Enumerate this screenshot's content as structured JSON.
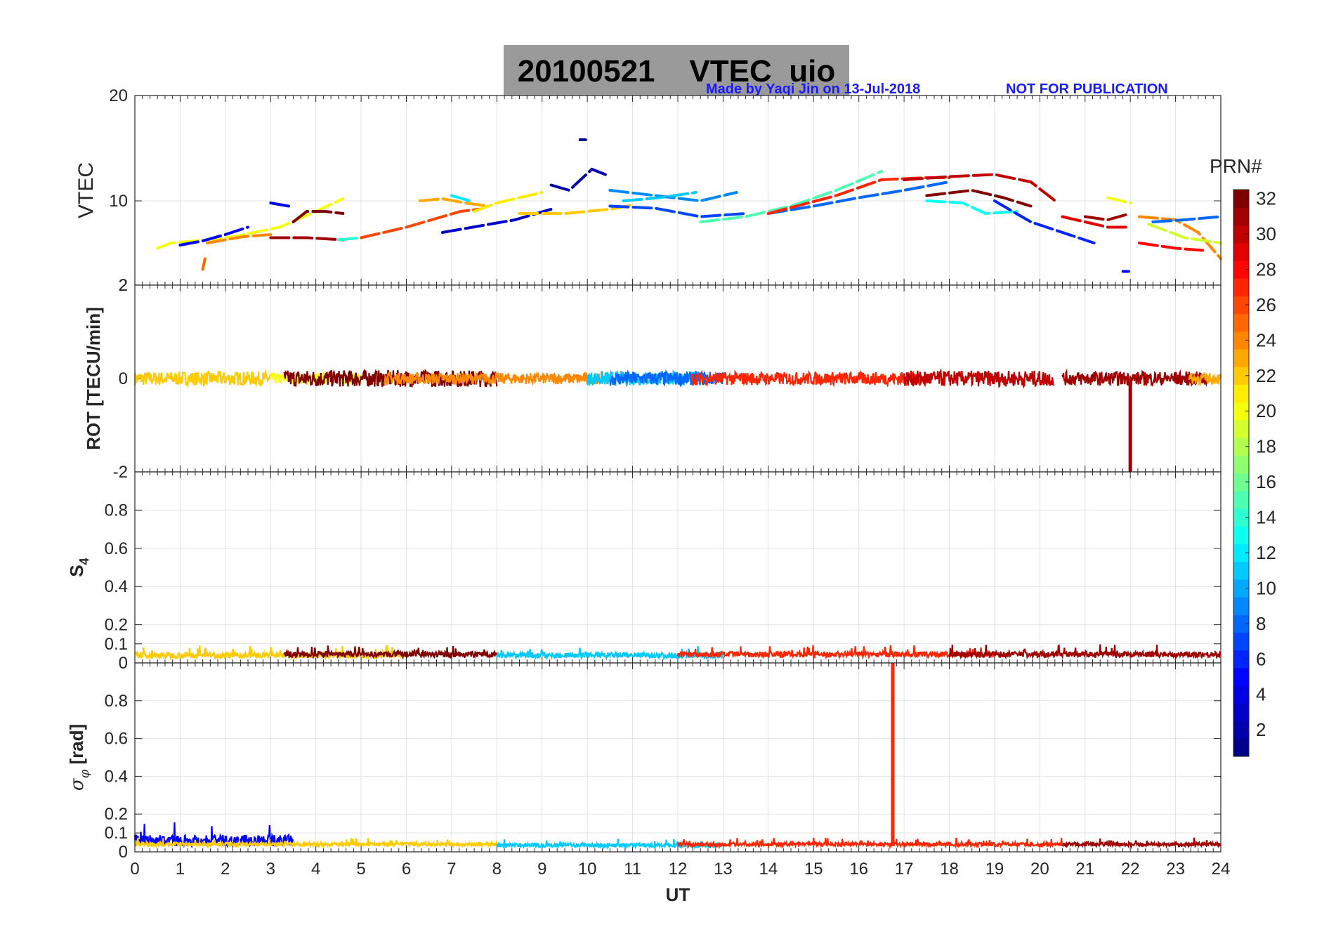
{
  "header": {
    "title": "20100521    VTEC  uio",
    "credit": "Made by Yaqi Jin on 13-Jul-2018",
    "notice": "NOT FOR PUBLICATION"
  },
  "colorbar": {
    "label": "PRN#",
    "ticks": [
      "2",
      "4",
      "6",
      "8",
      "10",
      "12",
      "14",
      "16",
      "18",
      "20",
      "22",
      "24",
      "26",
      "28",
      "30",
      "32"
    ],
    "range": [
      1,
      32
    ],
    "colormap": [
      "#00008f",
      "#0000ff",
      "#0080ff",
      "#00ffff",
      "#80ff80",
      "#ffff00",
      "#ff8000",
      "#ff0000",
      "#800000"
    ]
  },
  "chart_data": [
    {
      "type": "scatter",
      "name": "vtec",
      "title": "20100521 VTEC uio",
      "ylabel": "VTEC",
      "xlabel": "",
      "xlim": [
        0,
        24
      ],
      "ylim": [
        2,
        20
      ],
      "yticks": [
        "20",
        "10",
        "2"
      ],
      "grid": true,
      "series": [
        {
          "name": "PRN 20",
          "prn": 20,
          "x": [
            0.5,
            0.8,
            1.6,
            2.2,
            3.2,
            4.0,
            4.6
          ],
          "y": [
            5.5,
            6.0,
            6.3,
            6.6,
            7.5,
            9.0,
            10.2
          ]
        },
        {
          "name": "PRN 5",
          "prn": 5,
          "x": [
            1.0,
            1.5,
            2.0,
            2.5
          ],
          "y": [
            5.8,
            6.2,
            6.8,
            7.5
          ]
        },
        {
          "name": "PRN 24",
          "prn": 24,
          "x": [
            1.6,
            2.4,
            3.0
          ],
          "y": [
            6.0,
            6.6,
            6.8
          ]
        },
        {
          "name": "PRN 25",
          "prn": 25,
          "x": [
            1.5,
            1.55
          ],
          "y": [
            3.5,
            4.5
          ]
        },
        {
          "name": "PRN 4",
          "prn": 4,
          "x": [
            3.0,
            3.4
          ],
          "y": [
            9.8,
            9.5
          ]
        },
        {
          "name": "PRN 31",
          "prn": 31,
          "x": [
            3.0,
            3.8,
            4.6
          ],
          "y": [
            6.5,
            6.5,
            6.3
          ]
        },
        {
          "name": "PRN 32",
          "prn": 32,
          "x": [
            3.5,
            3.8,
            4.2,
            4.6
          ],
          "y": [
            8.0,
            9.0,
            9.0,
            8.8
          ]
        },
        {
          "name": "PRN 14",
          "prn": 14,
          "x": [
            4.5,
            5.0
          ],
          "y": [
            6.3,
            6.5
          ]
        },
        {
          "name": "PRN 26",
          "prn": 26,
          "x": [
            5.0,
            6.0,
            6.8,
            7.2,
            7.6
          ],
          "y": [
            6.5,
            7.5,
            8.5,
            9.0,
            9.2
          ]
        },
        {
          "name": "PRN 23",
          "prn": 23,
          "x": [
            6.3,
            6.8,
            7.3,
            7.8
          ],
          "y": [
            10.0,
            10.2,
            9.8,
            9.5
          ]
        },
        {
          "name": "PRN 21",
          "prn": 21,
          "x": [
            7.5,
            8.0,
            8.5,
            9.0
          ],
          "y": [
            9.0,
            9.8,
            10.3,
            10.8
          ]
        },
        {
          "name": "PRN 3",
          "prn": 3,
          "x": [
            6.8,
            7.6,
            8.4,
            9.2
          ],
          "y": [
            7.0,
            7.6,
            8.2,
            9.2
          ]
        },
        {
          "name": "PRN 12",
          "prn": 12,
          "x": [
            7.0,
            7.4
          ],
          "y": [
            10.5,
            10.0
          ]
        },
        {
          "name": "PRN 2",
          "prn": 2,
          "x": [
            9.2,
            9.6,
            10.1,
            10.4
          ],
          "y": [
            11.5,
            11.0,
            13.0,
            12.5
          ]
        },
        {
          "name": "PRN 1",
          "prn": 1,
          "x": [
            9.9
          ],
          "y": [
            15.8
          ]
        },
        {
          "name": "PRN 22",
          "prn": 22,
          "x": [
            8.5,
            9.5,
            10.5,
            11.0
          ],
          "y": [
            8.8,
            8.8,
            9.2,
            9.6
          ]
        },
        {
          "name": "PRN 9",
          "prn": 9,
          "x": [
            10.5,
            11.5,
            12.5,
            13.3
          ],
          "y": [
            11.0,
            10.5,
            10.0,
            10.8
          ]
        },
        {
          "name": "PRN 11",
          "prn": 11,
          "x": [
            10.8,
            11.6,
            12.4
          ],
          "y": [
            10.0,
            10.3,
            10.8
          ]
        },
        {
          "name": "PRN 7",
          "prn": 7,
          "x": [
            10.5,
            11.5,
            12.5,
            13.5
          ],
          "y": [
            9.5,
            9.3,
            8.5,
            8.8
          ]
        },
        {
          "name": "PRN 15",
          "prn": 15,
          "x": [
            12.5,
            13.5,
            14.5,
            15.5,
            16.5
          ],
          "y": [
            8.0,
            8.5,
            9.5,
            11.0,
            12.8
          ]
        },
        {
          "name": "PRN 8",
          "prn": 8,
          "x": [
            14.0,
            15.0,
            16.0,
            17.0,
            18.0
          ],
          "y": [
            8.8,
            9.5,
            10.3,
            11.0,
            11.8
          ]
        },
        {
          "name": "PRN 27",
          "prn": 27,
          "x": [
            14.0,
            15.5,
            16.5,
            17.5,
            18.0
          ],
          "y": [
            8.8,
            10.5,
            12.0,
            12.2,
            12.2
          ]
        },
        {
          "name": "PRN 30",
          "prn": 30,
          "x": [
            17.0,
            18.0,
            19.0,
            19.8,
            20.4
          ],
          "y": [
            12.0,
            12.3,
            12.5,
            11.8,
            9.8
          ]
        },
        {
          "name": "PRN 13",
          "prn": 13,
          "x": [
            17.5,
            18.3,
            18.8,
            19.5
          ],
          "y": [
            10.0,
            9.8,
            8.8,
            9.0
          ]
        },
        {
          "name": "PRN 32b",
          "prn": 32,
          "x": [
            17.5,
            18.5,
            19.2,
            19.8
          ],
          "y": [
            10.5,
            11.0,
            10.3,
            9.5
          ]
        },
        {
          "name": "PRN 6",
          "prn": 6,
          "x": [
            19.0,
            19.8,
            20.5,
            21.2
          ],
          "y": [
            10.0,
            8.0,
            7.0,
            6.0
          ]
        },
        {
          "name": "PRN 29",
          "prn": 29,
          "x": [
            20.5,
            21.0,
            21.5,
            22.0
          ],
          "y": [
            8.5,
            8.0,
            7.5,
            7.5
          ]
        },
        {
          "name": "PRN 31b",
          "prn": 31,
          "x": [
            21.0,
            21.5,
            22.0
          ],
          "y": [
            8.5,
            8.2,
            8.8
          ]
        },
        {
          "name": "PRN 20b",
          "prn": 20,
          "x": [
            21.5,
            22.0
          ],
          "y": [
            10.3,
            9.8
          ]
        },
        {
          "name": "PRN 24b",
          "prn": 24,
          "x": [
            22.2,
            23.0,
            23.5,
            24.0
          ],
          "y": [
            8.5,
            8.2,
            7.0,
            4.5
          ]
        },
        {
          "name": "PRN 8b",
          "prn": 8,
          "x": [
            22.5,
            23.2,
            24.0
          ],
          "y": [
            8.0,
            8.2,
            8.5
          ]
        },
        {
          "name": "PRN 28",
          "prn": 28,
          "x": [
            22.2,
            23.0,
            23.6
          ],
          "y": [
            6.0,
            5.5,
            5.3
          ]
        },
        {
          "name": "PRN 19",
          "prn": 19,
          "x": [
            22.4,
            23.2,
            24.0
          ],
          "y": [
            7.8,
            6.5,
            6.0
          ]
        },
        {
          "name": "PRN 5b",
          "prn": 5,
          "x": [
            21.9
          ],
          "y": [
            3.3
          ]
        }
      ]
    },
    {
      "type": "line",
      "name": "rot",
      "ylabel": "ROT [TECU/min]",
      "xlim": [
        0,
        24
      ],
      "ylim": [
        -2,
        2
      ],
      "yticks": [
        "2",
        "0",
        "-2"
      ],
      "grid": true,
      "series": [
        {
          "name": "PRN 22",
          "prn": 22,
          "x": [
            0,
            3
          ],
          "amplitude": 0.15,
          "mean": 0
        },
        {
          "name": "PRN 20",
          "prn": 20,
          "x": [
            3,
            5
          ],
          "amplitude": 0.12,
          "mean": 0
        },
        {
          "name": "PRN 32",
          "prn": 32,
          "x": [
            3.3,
            8
          ],
          "amplitude": 0.18,
          "mean": 0
        },
        {
          "name": "PRN 24",
          "prn": 24,
          "x": [
            5.5,
            10.5
          ],
          "amplitude": 0.12,
          "mean": 0
        },
        {
          "name": "PRN 11",
          "prn": 11,
          "x": [
            10,
            12.5
          ],
          "amplitude": 0.15,
          "mean": 0
        },
        {
          "name": "PRN 8",
          "prn": 8,
          "x": [
            10.5,
            13
          ],
          "amplitude": 0.15,
          "mean": 0
        },
        {
          "name": "PRN 27",
          "prn": 27,
          "x": [
            12.3,
            17.5
          ],
          "amplitude": 0.14,
          "mean": 0
        },
        {
          "name": "PRN 30",
          "prn": 30,
          "x": [
            17,
            20.3
          ],
          "amplitude": 0.17,
          "mean": 0
        },
        {
          "name": "PRN 31",
          "prn": 31,
          "x": [
            20.5,
            23.7
          ],
          "amplitude": 0.15,
          "mean": 0
        },
        {
          "name": "PRN 23",
          "prn": 23,
          "x": [
            23.3,
            24
          ],
          "amplitude": 0.12,
          "mean": 0
        },
        {
          "name": "PRN 31 spike",
          "prn": 31,
          "x": [
            22.0
          ],
          "y": [
            -2.0
          ]
        }
      ]
    },
    {
      "type": "line",
      "name": "s4",
      "ylabel": "S4",
      "xlim": [
        0,
        24
      ],
      "ylim": [
        0,
        1
      ],
      "yticks": [
        "0.8",
        "0.6",
        "0.4",
        "0.2",
        "0.1",
        "0"
      ],
      "grid": true,
      "series": [
        {
          "name": "PRN 22",
          "prn": 22,
          "x": [
            0,
            6
          ],
          "mean": 0.04,
          "amplitude": 0.015
        },
        {
          "name": "PRN 32",
          "prn": 32,
          "x": [
            3.3,
            8
          ],
          "mean": 0.045,
          "amplitude": 0.015
        },
        {
          "name": "PRN 11",
          "prn": 11,
          "x": [
            8,
            13
          ],
          "mean": 0.04,
          "amplitude": 0.015
        },
        {
          "name": "PRN 27",
          "prn": 27,
          "x": [
            12,
            19
          ],
          "mean": 0.045,
          "amplitude": 0.015
        },
        {
          "name": "PRN 31",
          "prn": 31,
          "x": [
            18,
            24
          ],
          "mean": 0.045,
          "amplitude": 0.015
        }
      ]
    },
    {
      "type": "line",
      "name": "sigma_phi",
      "ylabel": "σ_φ [rad]",
      "xlabel": "UT",
      "xlim": [
        0,
        24
      ],
      "ylim": [
        0,
        1
      ],
      "yticks": [
        "0.8",
        "0.6",
        "0.4",
        "0.2",
        "0.1",
        "0"
      ],
      "xticks": [
        "0",
        "1",
        "2",
        "3",
        "4",
        "5",
        "6",
        "7",
        "8",
        "9",
        "10",
        "11",
        "12",
        "13",
        "14",
        "15",
        "16",
        "17",
        "18",
        "19",
        "20",
        "21",
        "22",
        "23",
        "24"
      ],
      "grid": true,
      "series": [
        {
          "name": "PRN 5",
          "prn": 5,
          "x": [
            0,
            3.5
          ],
          "mean": 0.06,
          "amplitude": 0.03
        },
        {
          "name": "PRN 22",
          "prn": 22,
          "x": [
            0,
            8
          ],
          "mean": 0.04,
          "amplitude": 0.01
        },
        {
          "name": "PRN 11",
          "prn": 11,
          "x": [
            8,
            13
          ],
          "mean": 0.035,
          "amplitude": 0.01
        },
        {
          "name": "PRN 27",
          "prn": 27,
          "x": [
            12,
            20.5
          ],
          "mean": 0.04,
          "amplitude": 0.01
        },
        {
          "name": "PRN 31",
          "prn": 31,
          "x": [
            20.5,
            24
          ],
          "mean": 0.04,
          "amplitude": 0.01
        },
        {
          "name": "PRN 27 spike",
          "prn": 27,
          "x": [
            16.75
          ],
          "y": [
            1.0
          ]
        }
      ]
    }
  ]
}
